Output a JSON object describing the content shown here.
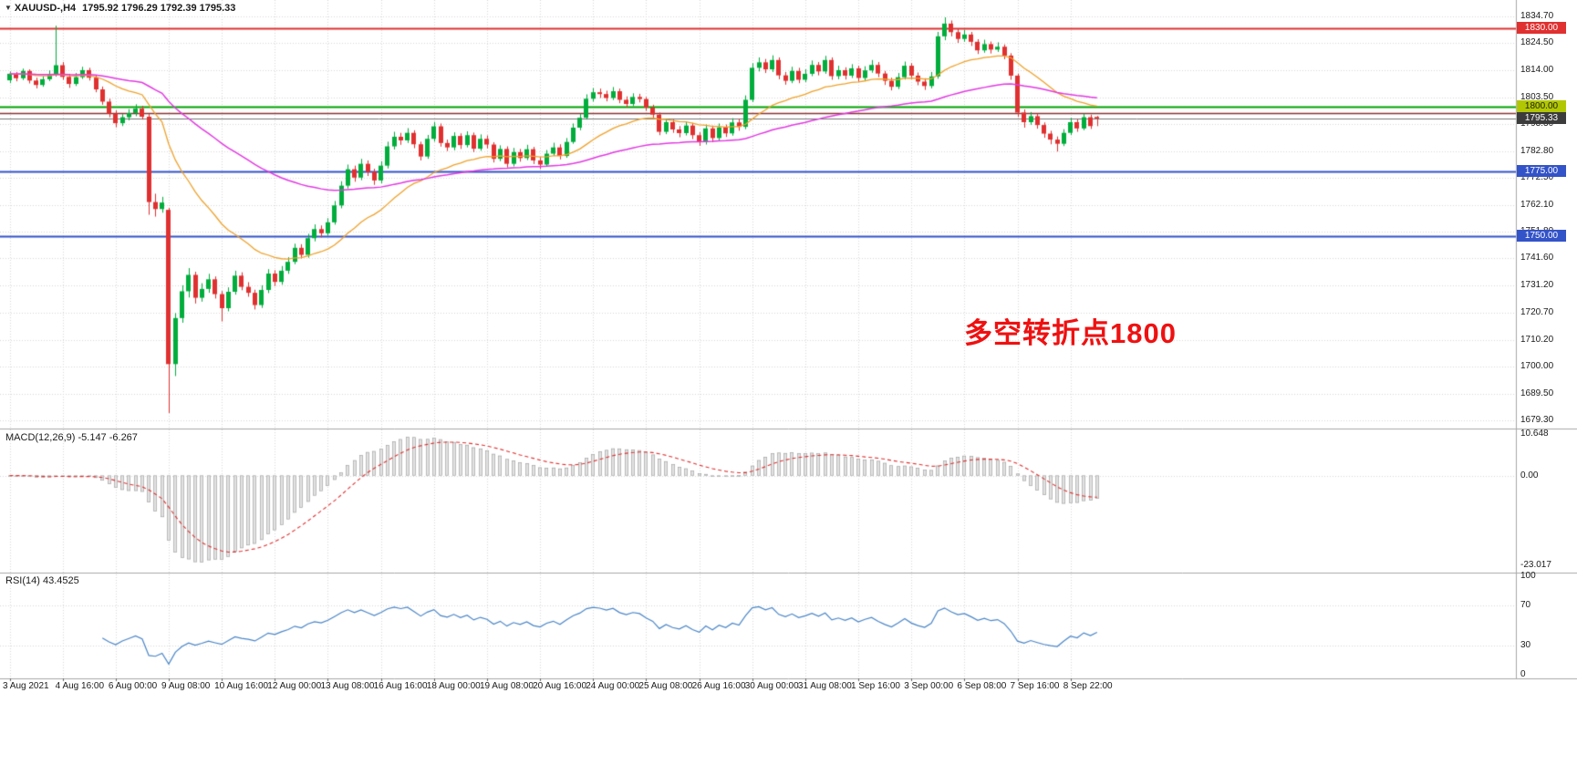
{
  "header": {
    "symbol": "XAUUSD-,H4",
    "ohlc": "1795.92 1796.29 1792.39 1795.33"
  },
  "annotation": {
    "text": "多空转折点1800",
    "color": "#ee1111"
  },
  "price_axis": {
    "ticks": [
      "1834.70",
      "1824.50",
      "1814.00",
      "1803.50",
      "1793.30",
      "1782.80",
      "1772.50",
      "1762.10",
      "1751.80",
      "1741.60",
      "1731.20",
      "1720.70",
      "1710.20",
      "1700.00",
      "1689.50",
      "1679.30"
    ],
    "badges": [
      {
        "value": "1830.00",
        "bg": "#e03030",
        "fg": "#ffffff"
      },
      {
        "value": "1800.00",
        "bg": "#b1c704",
        "fg": "#222200"
      },
      {
        "value": "1795.33",
        "bg": "#3c3c3c",
        "fg": "#ffffff"
      },
      {
        "value": "1775.00",
        "bg": "#3353c8",
        "fg": "#ffffff"
      },
      {
        "value": "1750.00",
        "bg": "#3353c8",
        "fg": "#ffffff"
      }
    ]
  },
  "time_axis": {
    "labels": [
      "3 Aug 2021",
      "4 Aug 16:00",
      "6 Aug 00:00",
      "9 Aug 08:00",
      "10 Aug 16:00",
      "12 Aug 00:00",
      "13 Aug 08:00",
      "16 Aug 16:00",
      "18 Aug 00:00",
      "19 Aug 08:00",
      "20 Aug 16:00",
      "24 Aug 00:00",
      "25 Aug 08:00",
      "26 Aug 16:00",
      "30 Aug 00:00",
      "31 Aug 08:00",
      "1 Sep 16:00",
      "3 Sep 00:00",
      "6 Sep 08:00",
      "7 Sep 16:00",
      "8 Sep 22:00"
    ]
  },
  "macd_panel": {
    "label": "MACD(12,26,9)",
    "values": "-5.147 -6.267",
    "ticks": [
      "10.648",
      "0.00",
      "-23.017"
    ]
  },
  "rsi_panel": {
    "label": "RSI(14)",
    "value": "43.4525",
    "ticks": [
      "100",
      "70",
      "30",
      "0"
    ]
  },
  "chart_data": {
    "type": "candlestick",
    "symbol": "XAUUSD",
    "timeframe": "H4",
    "title": "XAUUSD-,H4 1795.92 1796.29 1792.39 1795.33",
    "price_range": [
      1679.3,
      1834.7
    ],
    "current_price": 1795.33,
    "up_color": "#00ad3c",
    "down_color": "#e03030",
    "hlines": [
      {
        "price": 1830.0,
        "color": "#e03030",
        "width": 2
      },
      {
        "price": 1800.0,
        "color": "#00a400",
        "width": 2
      },
      {
        "price": 1797.4,
        "color": "#8b3232",
        "width": 1.5
      },
      {
        "price": 1775.0,
        "color": "#3353c8",
        "width": 2
      },
      {
        "price": 1750.0,
        "color": "#3353c8",
        "width": 2
      }
    ],
    "ma_fast": {
      "type": "ema",
      "period": 21,
      "color": "#efa22a"
    },
    "ma_slow": {
      "type": "ema",
      "period": 65,
      "color": "#e23ae2"
    },
    "macd": {
      "fast": 12,
      "slow": 26,
      "signal": 9,
      "main_value": -5.147,
      "signal_value": -6.267,
      "range": [
        -23.017,
        10.648
      ],
      "hist_color": "#e2e2e2",
      "hist_border": "#a0a0a0",
      "signal_color": "#e03030"
    },
    "rsi": {
      "period": 14,
      "value": 43.4525,
      "color": "#4a86c8",
      "levels": [
        70,
        30
      ],
      "range": [
        0,
        100
      ]
    },
    "candles_ohlc": [
      [
        1810.0,
        1813.4,
        1808.9,
        1812.5
      ],
      [
        1812.5,
        1813.2,
        1809.6,
        1810.8
      ],
      [
        1810.8,
        1814.5,
        1810.1,
        1813.6
      ],
      [
        1813.6,
        1814.2,
        1808.8,
        1809.9
      ],
      [
        1809.9,
        1811.0,
        1806.9,
        1808.2
      ],
      [
        1808.2,
        1811.6,
        1807.5,
        1810.4
      ],
      [
        1810.4,
        1813.8,
        1809.7,
        1812.1
      ],
      [
        1812.1,
        1831.0,
        1811.4,
        1815.8
      ],
      [
        1815.8,
        1817.0,
        1810.2,
        1811.3
      ],
      [
        1811.3,
        1812.5,
        1807.1,
        1808.6
      ],
      [
        1808.6,
        1812.8,
        1807.8,
        1811.2
      ],
      [
        1811.2,
        1815.2,
        1810.5,
        1813.9
      ],
      [
        1813.9,
        1814.8,
        1809.9,
        1811.0
      ],
      [
        1811.0,
        1812.0,
        1805.4,
        1806.5
      ],
      [
        1806.5,
        1807.6,
        1800.6,
        1801.8
      ],
      [
        1801.8,
        1802.9,
        1795.8,
        1797.2
      ],
      [
        1797.2,
        1798.4,
        1791.9,
        1793.5
      ],
      [
        1793.5,
        1797.0,
        1792.4,
        1795.8
      ],
      [
        1795.8,
        1798.9,
        1794.6,
        1797.4
      ],
      [
        1797.4,
        1800.8,
        1796.2,
        1799.1
      ],
      [
        1799.1,
        1800.2,
        1794.9,
        1796.0
      ],
      [
        1796.0,
        1797.1,
        1758.3,
        1763.2
      ],
      [
        1763.2,
        1766.4,
        1757.6,
        1760.5
      ],
      [
        1760.5,
        1765.2,
        1759.1,
        1763.0
      ],
      [
        1760.2,
        1761.0,
        1682.1,
        1700.9
      ],
      [
        1700.9,
        1720.5,
        1696.3,
        1718.6
      ],
      [
        1718.6,
        1731.2,
        1716.8,
        1728.9
      ],
      [
        1728.9,
        1737.8,
        1726.5,
        1735.2
      ],
      [
        1735.2,
        1736.4,
        1724.2,
        1726.4
      ],
      [
        1726.4,
        1732.0,
        1724.9,
        1729.8
      ],
      [
        1729.8,
        1735.6,
        1728.3,
        1733.5
      ],
      [
        1733.5,
        1734.6,
        1726.1,
        1727.8
      ],
      [
        1727.8,
        1729.0,
        1717.3,
        1722.4
      ],
      [
        1722.4,
        1730.4,
        1721.2,
        1728.7
      ],
      [
        1728.7,
        1736.8,
        1727.6,
        1734.9
      ],
      [
        1734.9,
        1736.2,
        1729.3,
        1730.6
      ],
      [
        1730.6,
        1732.4,
        1726.8,
        1728.3
      ],
      [
        1728.3,
        1729.5,
        1721.9,
        1723.6
      ],
      [
        1723.6,
        1731.2,
        1722.5,
        1729.4
      ],
      [
        1729.4,
        1737.4,
        1728.2,
        1735.7
      ],
      [
        1735.7,
        1737.0,
        1730.9,
        1732.5
      ],
      [
        1732.5,
        1738.6,
        1731.4,
        1736.8
      ],
      [
        1736.8,
        1742.0,
        1735.6,
        1740.2
      ],
      [
        1740.2,
        1747.2,
        1739.3,
        1745.6
      ],
      [
        1745.6,
        1747.0,
        1741.5,
        1742.9
      ],
      [
        1742.9,
        1751.0,
        1741.8,
        1749.3
      ],
      [
        1749.3,
        1754.6,
        1748.1,
        1752.8
      ],
      [
        1752.8,
        1754.2,
        1749.6,
        1751.2
      ],
      [
        1751.2,
        1757.0,
        1750.3,
        1755.4
      ],
      [
        1755.4,
        1763.6,
        1754.5,
        1761.9
      ],
      [
        1761.9,
        1771.2,
        1760.8,
        1769.5
      ],
      [
        1769.5,
        1777.6,
        1768.4,
        1775.8
      ],
      [
        1775.8,
        1777.2,
        1771.0,
        1772.6
      ],
      [
        1772.6,
        1779.8,
        1771.6,
        1777.9
      ],
      [
        1777.9,
        1779.2,
        1773.2,
        1774.8
      ],
      [
        1774.8,
        1776.0,
        1769.8,
        1771.5
      ],
      [
        1771.5,
        1778.9,
        1770.4,
        1777.2
      ],
      [
        1777.2,
        1786.4,
        1776.1,
        1784.6
      ],
      [
        1784.6,
        1790.2,
        1783.4,
        1788.3
      ],
      [
        1788.3,
        1789.8,
        1785.2,
        1786.9
      ],
      [
        1786.9,
        1791.6,
        1785.9,
        1789.8
      ],
      [
        1789.8,
        1790.8,
        1783.9,
        1785.4
      ],
      [
        1785.4,
        1786.4,
        1779.2,
        1780.7
      ],
      [
        1780.7,
        1789.0,
        1779.8,
        1787.5
      ],
      [
        1787.5,
        1794.0,
        1786.4,
        1792.3
      ],
      [
        1792.3,
        1793.4,
        1784.5,
        1785.9
      ],
      [
        1785.9,
        1787.2,
        1782.8,
        1784.2
      ],
      [
        1784.2,
        1790.0,
        1783.1,
        1788.6
      ],
      [
        1788.6,
        1789.6,
        1783.6,
        1785.1
      ],
      [
        1785.1,
        1790.4,
        1784.2,
        1788.9
      ],
      [
        1788.9,
        1789.9,
        1782.4,
        1783.7
      ],
      [
        1783.7,
        1789.2,
        1782.9,
        1787.5
      ],
      [
        1787.5,
        1788.8,
        1783.8,
        1785.3
      ],
      [
        1785.3,
        1786.2,
        1778.4,
        1779.8
      ],
      [
        1779.8,
        1785.0,
        1778.9,
        1783.6
      ],
      [
        1783.6,
        1784.6,
        1776.5,
        1777.9
      ],
      [
        1777.9,
        1784.0,
        1776.9,
        1782.4
      ],
      [
        1782.4,
        1783.6,
        1778.7,
        1780.1
      ],
      [
        1780.1,
        1785.2,
        1779.3,
        1783.5
      ],
      [
        1783.5,
        1784.4,
        1777.8,
        1779.2
      ],
      [
        1779.2,
        1780.6,
        1775.9,
        1777.6
      ],
      [
        1777.6,
        1783.2,
        1776.8,
        1781.8
      ],
      [
        1781.8,
        1786.0,
        1780.9,
        1784.2
      ],
      [
        1784.2,
        1785.4,
        1779.6,
        1780.9
      ],
      [
        1780.9,
        1787.8,
        1780.2,
        1786.3
      ],
      [
        1786.3,
        1793.4,
        1785.6,
        1791.8
      ],
      [
        1791.8,
        1797.2,
        1790.8,
        1795.6
      ],
      [
        1795.6,
        1804.6,
        1794.9,
        1802.9
      ],
      [
        1802.9,
        1807.0,
        1801.8,
        1805.4
      ],
      [
        1805.4,
        1806.8,
        1803.2,
        1804.7
      ],
      [
        1804.7,
        1806.0,
        1801.9,
        1803.2
      ],
      [
        1803.2,
        1807.4,
        1802.4,
        1805.8
      ],
      [
        1805.8,
        1806.8,
        1801.2,
        1802.5
      ],
      [
        1802.5,
        1803.8,
        1799.6,
        1800.9
      ],
      [
        1800.9,
        1805.0,
        1800.1,
        1803.6
      ],
      [
        1803.6,
        1804.8,
        1801.5,
        1802.8
      ],
      [
        1802.8,
        1803.6,
        1798.2,
        1799.5
      ],
      [
        1799.5,
        1800.6,
        1795.4,
        1796.8
      ],
      [
        1796.8,
        1797.6,
        1788.9,
        1790.2
      ],
      [
        1790.2,
        1795.2,
        1789.3,
        1793.9
      ],
      [
        1793.9,
        1795.0,
        1789.8,
        1791.1
      ],
      [
        1791.1,
        1792.4,
        1788.1,
        1789.7
      ],
      [
        1789.7,
        1794.2,
        1788.8,
        1792.6
      ],
      [
        1792.6,
        1793.6,
        1787.4,
        1788.9
      ],
      [
        1788.9,
        1790.0,
        1784.8,
        1786.2
      ],
      [
        1786.2,
        1793.0,
        1785.3,
        1791.5
      ],
      [
        1791.5,
        1792.6,
        1786.2,
        1787.8
      ],
      [
        1787.8,
        1793.4,
        1786.9,
        1791.9
      ],
      [
        1791.9,
        1793.0,
        1788.2,
        1789.6
      ],
      [
        1789.6,
        1795.4,
        1788.7,
        1793.8
      ],
      [
        1793.8,
        1795.2,
        1790.6,
        1792.1
      ],
      [
        1792.1,
        1804.2,
        1791.2,
        1802.5
      ],
      [
        1802.5,
        1816.6,
        1801.6,
        1814.8
      ],
      [
        1814.8,
        1818.8,
        1813.4,
        1816.9
      ],
      [
        1816.9,
        1818.2,
        1812.8,
        1814.2
      ],
      [
        1814.2,
        1819.6,
        1813.2,
        1817.8
      ],
      [
        1817.8,
        1818.8,
        1810.4,
        1811.9
      ],
      [
        1811.9,
        1813.2,
        1808.3,
        1809.8
      ],
      [
        1809.8,
        1815.2,
        1808.9,
        1813.6
      ],
      [
        1813.6,
        1814.8,
        1808.9,
        1810.2
      ],
      [
        1810.2,
        1814.2,
        1809.3,
        1812.5
      ],
      [
        1812.5,
        1817.6,
        1811.6,
        1815.9
      ],
      [
        1815.9,
        1817.0,
        1811.9,
        1813.4
      ],
      [
        1813.4,
        1819.4,
        1812.5,
        1817.8
      ],
      [
        1817.8,
        1818.8,
        1810.2,
        1811.6
      ],
      [
        1811.6,
        1815.6,
        1810.4,
        1813.9
      ],
      [
        1813.9,
        1815.0,
        1810.3,
        1811.8
      ],
      [
        1811.8,
        1816.2,
        1810.9,
        1814.6
      ],
      [
        1814.6,
        1815.6,
        1809.4,
        1810.9
      ],
      [
        1810.9,
        1815.4,
        1809.9,
        1813.8
      ],
      [
        1813.8,
        1817.8,
        1812.9,
        1815.9
      ],
      [
        1815.9,
        1817.0,
        1811.2,
        1812.6
      ],
      [
        1812.6,
        1813.6,
        1808.2,
        1809.8
      ],
      [
        1809.8,
        1811.0,
        1806.1,
        1807.5
      ],
      [
        1807.5,
        1812.8,
        1806.6,
        1811.2
      ],
      [
        1811.2,
        1817.2,
        1810.3,
        1815.6
      ],
      [
        1815.6,
        1816.6,
        1810.4,
        1811.8
      ],
      [
        1811.8,
        1813.0,
        1808.1,
        1809.5
      ],
      [
        1809.5,
        1810.8,
        1806.3,
        1807.8
      ],
      [
        1807.8,
        1813.2,
        1806.9,
        1811.5
      ],
      [
        1811.5,
        1828.6,
        1810.6,
        1826.9
      ],
      [
        1826.9,
        1834.2,
        1825.4,
        1831.8
      ],
      [
        1831.8,
        1833.0,
        1826.9,
        1828.5
      ],
      [
        1828.5,
        1829.8,
        1824.4,
        1825.9
      ],
      [
        1825.9,
        1829.4,
        1824.8,
        1827.6
      ],
      [
        1827.6,
        1828.6,
        1823.2,
        1824.8
      ],
      [
        1824.8,
        1825.8,
        1820.1,
        1821.5
      ],
      [
        1821.5,
        1825.6,
        1820.6,
        1823.9
      ],
      [
        1823.9,
        1824.9,
        1820.3,
        1821.8
      ],
      [
        1821.8,
        1824.6,
        1820.9,
        1822.9
      ],
      [
        1822.9,
        1823.8,
        1818.1,
        1819.5
      ],
      [
        1819.5,
        1820.4,
        1810.2,
        1811.8
      ],
      [
        1811.8,
        1812.6,
        1795.9,
        1797.6
      ],
      [
        1797.6,
        1798.8,
        1791.8,
        1793.9
      ],
      [
        1793.9,
        1797.8,
        1792.9,
        1796.2
      ],
      [
        1796.2,
        1797.2,
        1791.4,
        1792.8
      ],
      [
        1792.8,
        1793.8,
        1787.9,
        1789.5
      ],
      [
        1789.5,
        1790.6,
        1785.4,
        1787.2
      ],
      [
        1787.2,
        1788.4,
        1782.6,
        1785.6
      ],
      [
        1785.6,
        1791.2,
        1784.7,
        1789.8
      ],
      [
        1789.8,
        1795.6,
        1788.9,
        1793.9
      ],
      [
        1793.9,
        1795.0,
        1790.2,
        1791.5
      ],
      [
        1791.5,
        1797.2,
        1790.8,
        1795.8
      ],
      [
        1795.8,
        1796.8,
        1791.3,
        1792.4
      ],
      [
        1795.92,
        1796.29,
        1792.39,
        1795.33
      ]
    ]
  }
}
